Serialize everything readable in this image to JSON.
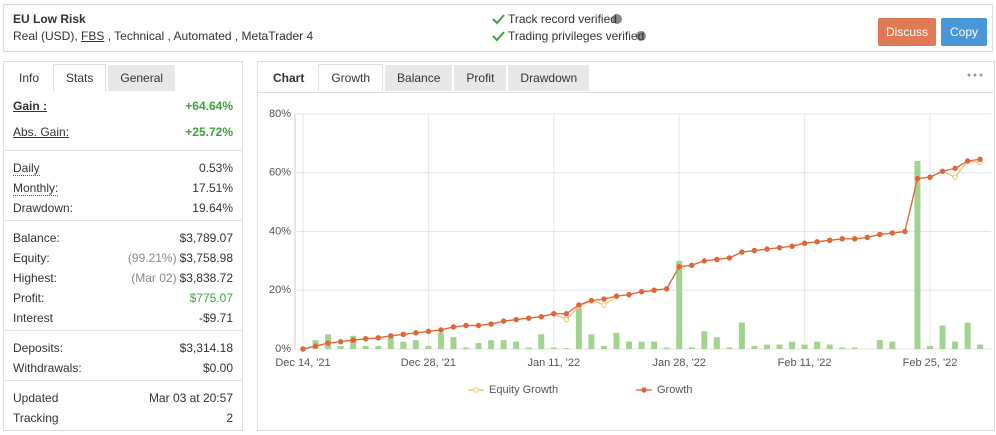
{
  "header": {
    "title": "EU Low Risk",
    "details": [
      "Real (USD), ",
      "FBS",
      " , Technical , Automated , MetaTrader 4"
    ],
    "verifications": [
      "Track record verified",
      "Trading privileges verified"
    ],
    "buttons": [
      "Discuss",
      "Copy"
    ]
  },
  "stats_panel": {
    "tabs": [
      "Info",
      "Stats",
      "General"
    ],
    "groups": [
      [
        {
          "label": "Gain :",
          "value": "+64.64%",
          "color": "#3fa33f"
        },
        {
          "label": "Abs. Gain:",
          "value": "+25.72%",
          "color": "#3fa33f"
        }
      ],
      [
        {
          "label": "Daily",
          "value": "0.53%"
        },
        {
          "label": "Monthly:",
          "value": "17.51%"
        },
        {
          "label": "Drawdown:",
          "value": "19.64%"
        }
      ],
      [
        {
          "label": "Balance:",
          "value": "$3,789.07"
        },
        {
          "label": "Equity:",
          "note": "(99.21%)",
          "value": "$3,758.98"
        },
        {
          "label": "Highest:",
          "note": "(Mar 02)",
          "value": "$3,838.72"
        },
        {
          "label": "Profit:",
          "value": "$775.07",
          "color": "#3fa33f"
        },
        {
          "label": "Interest",
          "value": "-$9.71"
        }
      ],
      [
        {
          "label": "Deposits:",
          "value": "$3,314.18"
        },
        {
          "label": "Withdrawals:",
          "value": "$0.00"
        }
      ],
      [
        {
          "label": "Updated",
          "value": "Mar 03 at 20:57"
        },
        {
          "label": "Tracking",
          "value": "2"
        }
      ]
    ]
  },
  "chart_panel": {
    "tabs": [
      "Chart",
      "Growth",
      "Balance",
      "Profit",
      "Drawdown"
    ]
  },
  "chart_data": {
    "type": "line",
    "categories": [
      "Dec 14, '21",
      null,
      null,
      null,
      null,
      null,
      null,
      null,
      null,
      null,
      "Dec 28, '21",
      null,
      null,
      null,
      null,
      null,
      null,
      null,
      null,
      null,
      "Jan 11, '22",
      null,
      null,
      null,
      null,
      null,
      null,
      null,
      null,
      null,
      "Jan 28, '22",
      null,
      null,
      null,
      null,
      null,
      null,
      null,
      null,
      null,
      "Feb 11, '22",
      null,
      null,
      null,
      null,
      null,
      null,
      null,
      null,
      null,
      "Feb 25, '22",
      null,
      null,
      null,
      null
    ],
    "series": [
      {
        "kind": "bar",
        "color": "#a3d391",
        "values": [
          0,
          3,
          5,
          1,
          4.5,
          1,
          1,
          4,
          2.5,
          3,
          1,
          5.5,
          4,
          0.5,
          2,
          3,
          3,
          2.5,
          0.5,
          5,
          0.5,
          0.3,
          14,
          5,
          1,
          5.5,
          2.5,
          2.5,
          2.5,
          0.5,
          30,
          0.5,
          6,
          4,
          0.5,
          9,
          1,
          1.5,
          1.5,
          2.5,
          1.5,
          2.5,
          1.5,
          0.5,
          0.5,
          0,
          3,
          2.5,
          0,
          64,
          1,
          8,
          2.5,
          9,
          1.5
        ]
      },
      {
        "name": "Equity Growth",
        "kind": "line",
        "hollow": true,
        "color": "#f2c26b",
        "values": [
          0,
          1,
          2,
          2.5,
          3,
          3.5,
          3.8,
          4.5,
          5,
          5.5,
          6,
          6.5,
          7.5,
          8,
          8,
          8.5,
          9.5,
          10,
          10.5,
          11,
          12,
          10,
          14.5,
          16.5,
          15,
          18,
          18.5,
          19.5,
          20,
          20.5,
          28,
          28.5,
          30,
          30.5,
          31,
          33,
          33.5,
          34,
          34.5,
          35,
          36,
          36.5,
          37,
          37.5,
          37.5,
          38,
          39,
          39.5,
          40,
          58,
          58.5,
          60.5,
          58.5,
          64,
          63.5
        ]
      },
      {
        "name": "Growth",
        "kind": "line",
        "color": "#e0663a",
        "values": [
          0,
          1,
          2,
          2.5,
          3,
          3.5,
          3.8,
          4.5,
          5,
          5.5,
          6,
          6.5,
          7.5,
          8,
          8,
          8.5,
          9.5,
          10,
          10.5,
          11,
          12,
          12,
          15,
          16.5,
          17,
          18,
          18.5,
          19.5,
          20,
          20.5,
          28,
          28.5,
          30,
          30.5,
          31,
          33,
          33.5,
          34,
          34.5,
          35,
          36,
          36.5,
          37,
          37.5,
          37.5,
          38,
          39,
          39.5,
          40,
          58,
          58.5,
          60.5,
          61.5,
          64,
          64.6
        ]
      }
    ],
    "ylim": [
      0,
      80
    ],
    "yticks": [
      {
        "value": 0,
        "label": "0%"
      },
      {
        "value": 20,
        "label": "20%"
      },
      {
        "value": 40,
        "label": "40%"
      },
      {
        "value": 60,
        "label": "60%"
      },
      {
        "value": 80,
        "label": "80%"
      }
    ],
    "grid": true
  }
}
